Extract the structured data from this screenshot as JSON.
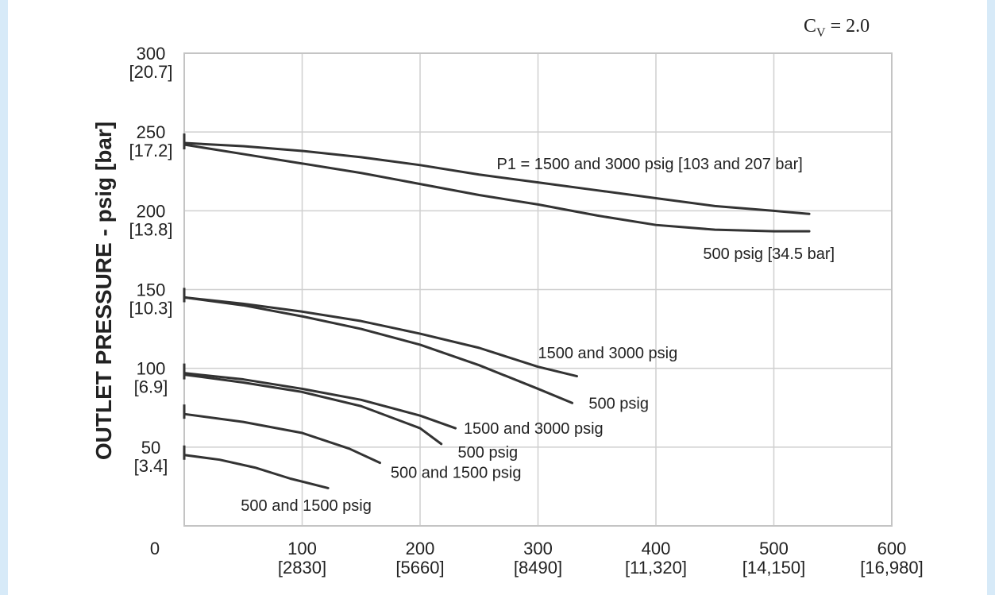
{
  "chart_data": {
    "type": "line",
    "title": "",
    "annotation_cv": {
      "prefix": "C",
      "subscript": "V",
      "suffix": " = 2.0"
    },
    "ylabel": "OUTLET PRESSURE - psig [bar]",
    "xlabel": "",
    "xlim": [
      0,
      600
    ],
    "ylim": [
      0,
      300
    ],
    "grid": true,
    "x_ticks": [
      {
        "value": 0,
        "label": "0",
        "sub": ""
      },
      {
        "value": 100,
        "label": "100",
        "sub": "[2830]"
      },
      {
        "value": 200,
        "label": "200",
        "sub": "[5660]"
      },
      {
        "value": 300,
        "label": "300",
        "sub": "[8490]"
      },
      {
        "value": 400,
        "label": "400",
        "sub": "[11,320]"
      },
      {
        "value": 500,
        "label": "500",
        "sub": "[14,150]"
      },
      {
        "value": 600,
        "label": "600",
        "sub": "[16,980]"
      }
    ],
    "y_ticks": [
      {
        "value": 300,
        "label": "300",
        "sub": "[20.7]"
      },
      {
        "value": 250,
        "label": "250",
        "sub": "[17.2]"
      },
      {
        "value": 200,
        "label": "200",
        "sub": "[13.8]"
      },
      {
        "value": 150,
        "label": "150",
        "sub": "[10.3]"
      },
      {
        "value": 100,
        "label": "100",
        "sub": "[6.9]"
      },
      {
        "value": 50,
        "label": "50",
        "sub": "[3.4]"
      }
    ],
    "series": [
      {
        "name": "P1 = 1500 and 3000 psig [103 and 207 bar]",
        "x": [
          0,
          50,
          100,
          150,
          200,
          250,
          300,
          350,
          400,
          450,
          500,
          530
        ],
        "y": [
          243,
          241,
          238,
          234,
          229,
          223,
          218,
          213,
          208,
          203,
          200,
          198
        ],
        "label_pos": {
          "x": 265,
          "y": 230
        }
      },
      {
        "name": "500 psig [34.5 bar]",
        "x": [
          0,
          50,
          100,
          150,
          200,
          250,
          300,
          350,
          400,
          450,
          500,
          530
        ],
        "y": [
          242,
          236,
          230,
          224,
          217,
          210,
          204,
          197,
          191,
          188,
          187,
          187
        ],
        "label_pos": {
          "x": 440,
          "y": 173
        }
      },
      {
        "name": "1500 and 3000 psig",
        "x": [
          0,
          50,
          100,
          150,
          200,
          250,
          300,
          333
        ],
        "y": [
          145,
          141,
          136,
          130,
          122,
          113,
          101,
          95
        ],
        "label_pos": {
          "x": 300,
          "y": 110
        }
      },
      {
        "name": "500 psig",
        "x": [
          0,
          50,
          100,
          150,
          200,
          250,
          300,
          329
        ],
        "y": [
          145,
          140,
          133,
          125,
          115,
          102,
          87,
          78
        ],
        "label_pos": {
          "x": 343,
          "y": 78
        }
      },
      {
        "name": "1500 and 3000 psig",
        "x": [
          0,
          50,
          100,
          150,
          200,
          230
        ],
        "y": [
          97,
          93,
          87,
          80,
          70,
          62
        ],
        "label_pos": {
          "x": 237,
          "y": 62
        }
      },
      {
        "name": "500 psig",
        "x": [
          0,
          50,
          100,
          150,
          200,
          218
        ],
        "y": [
          96,
          91,
          85,
          76,
          62,
          52
        ],
        "label_pos": {
          "x": 232,
          "y": 47
        }
      },
      {
        "name": "500 and 1500 psig",
        "x": [
          0,
          50,
          100,
          140,
          166
        ],
        "y": [
          71,
          66,
          59,
          49,
          40
        ],
        "label_pos": {
          "x": 175,
          "y": 34
        }
      },
      {
        "name": "500 and 1500 psig",
        "x": [
          0,
          30,
          60,
          90,
          122
        ],
        "y": [
          45,
          42,
          37,
          30,
          24
        ],
        "label_pos": {
          "x": 48,
          "y": 13
        }
      }
    ]
  }
}
